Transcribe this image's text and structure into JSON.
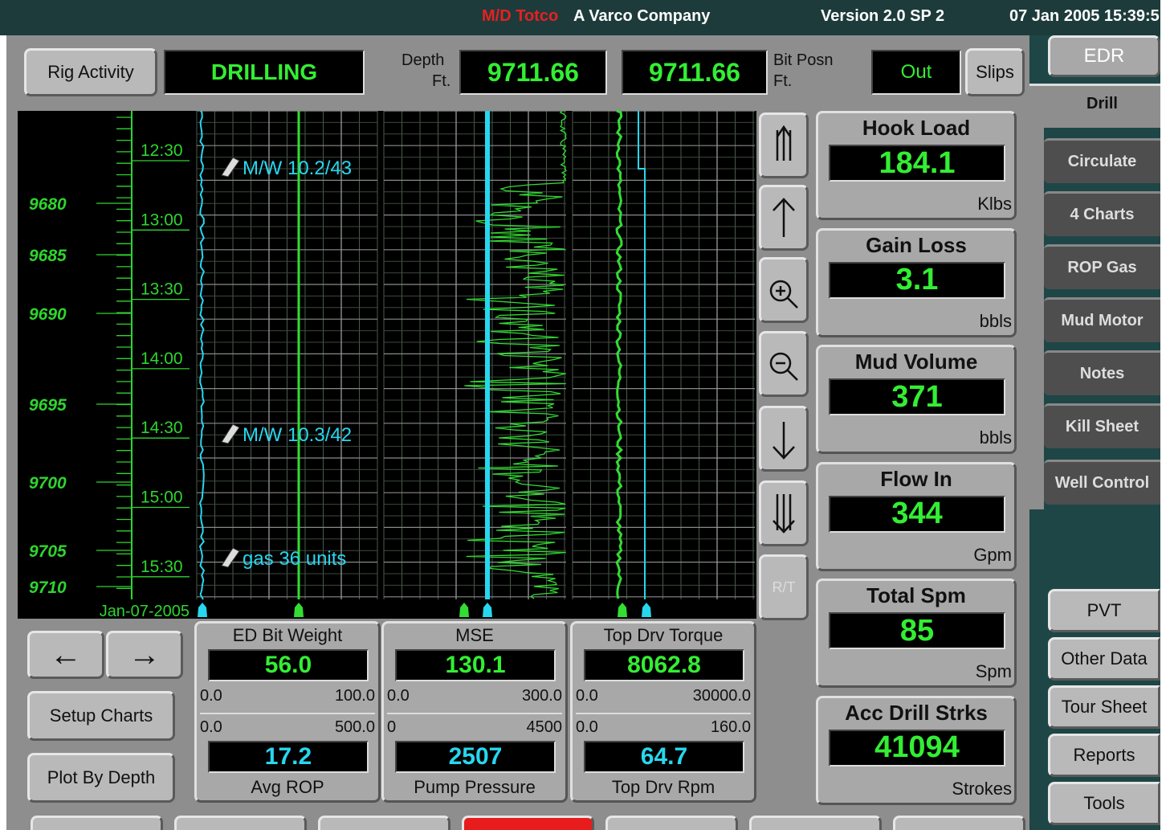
{
  "header": {
    "brand": "M/D Totco",
    "company": "A Varco Company",
    "version": "Version 2.0 SP 2",
    "datetime": "07 Jan 2005 15:39:5"
  },
  "top": {
    "rig_activity": "Rig Activity",
    "status": "DRILLING",
    "depth_label": "Depth",
    "depth_unit": "Ft.",
    "depth_value": "9711.66",
    "bit_posn_value": "9711.66",
    "bit_posn_label": "Bit Posn",
    "bit_posn_unit": "Ft.",
    "out": "Out",
    "slips": "Slips"
  },
  "right_nav": {
    "edr": "EDR",
    "tabs": [
      "Drill",
      "Circulate",
      "4 Charts",
      "ROP Gas",
      "Mud Motor",
      "Notes",
      "Kill Sheet",
      "Well Control"
    ],
    "buttons": [
      "PVT",
      "Other Data",
      "Tour Sheet",
      "Reports",
      "Tools"
    ]
  },
  "depth_axis": {
    "depths": [
      "9680",
      "9685",
      "9690",
      "9695",
      "9700",
      "9705",
      "9710"
    ],
    "times": [
      "12:30",
      "13:00",
      "13:30",
      "14:00",
      "14:30",
      "15:00",
      "15:30"
    ],
    "date": "Jan-07-2005"
  },
  "annotations": [
    "M/W 10.2/43",
    "M/W 10.3/42",
    "gas 36 units"
  ],
  "side_buttons": {
    "rt": "R/T"
  },
  "left_buttons": [
    "Setup Charts",
    "Plot By Depth"
  ],
  "tracks": [
    {
      "top": {
        "name": "ED Bit Weight",
        "value": "56.0",
        "min": "0.0",
        "max": "100.0"
      },
      "bottom": {
        "name": "Avg ROP",
        "value": "17.2",
        "min": "0.0",
        "max": "500.0"
      }
    },
    {
      "top": {
        "name": "MSE",
        "value": "130.1",
        "min": "0.0",
        "max": "300.0"
      },
      "bottom": {
        "name": "Pump Pressure",
        "value": "2507",
        "min": "0",
        "max": "4500"
      }
    },
    {
      "top": {
        "name": "Top Drv Torque",
        "value": "8062.8",
        "min": "0.0",
        "max": "30000.0"
      },
      "bottom": {
        "name": "Top Drv Rpm",
        "value": "64.7",
        "min": "0.0",
        "max": "160.0"
      }
    }
  ],
  "gauges": [
    {
      "title": "Hook Load",
      "value": "184.1",
      "unit": "Klbs"
    },
    {
      "title": "Gain Loss",
      "value": "3.1",
      "unit": "bbls"
    },
    {
      "title": "Mud Volume",
      "value": "371",
      "unit": "bbls"
    },
    {
      "title": "Flow In",
      "value": "344",
      "unit": "Gpm"
    },
    {
      "title": "Total Spm",
      "value": "85",
      "unit": "Spm"
    },
    {
      "title": "Acc Drill Strks",
      "value": "41094",
      "unit": "Strokes"
    }
  ]
}
